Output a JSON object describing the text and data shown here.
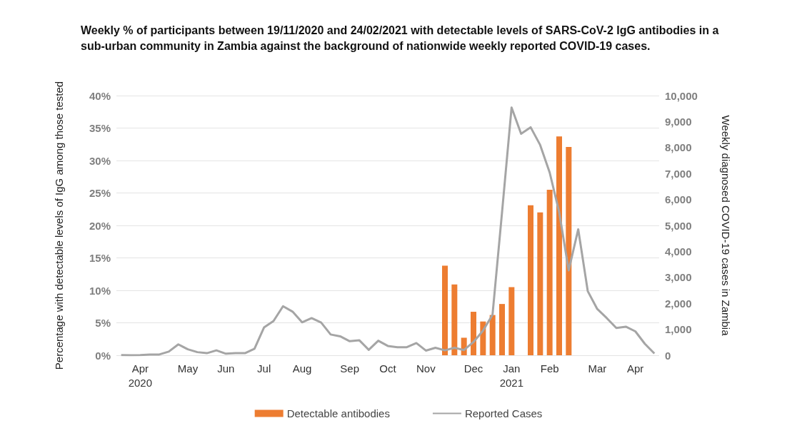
{
  "chart_data": {
    "type": "bar",
    "title": "Weekly % of participants between 19/11/2020 and 24/02/2021 with detectable levels of SARS-CoV-2 IgG antibodies in a sub-urban community in Zambia against the background of nationwide weekly reported COVID-19 cases.",
    "ylabel": "Percentage with detectable levels of IgG among those tested",
    "y2label": "Weekly diagnosed COVID-19 cases in Zambia",
    "categories": [
      null,
      null,
      "Apr\n2020",
      null,
      null,
      null,
      null,
      "May",
      null,
      null,
      null,
      "Jun",
      null,
      null,
      null,
      "Jul",
      null,
      null,
      null,
      "Aug",
      null,
      null,
      null,
      null,
      "Sep",
      null,
      null,
      null,
      "Oct",
      null,
      null,
      null,
      "Nov",
      null,
      null,
      null,
      null,
      "Dec",
      null,
      null,
      null,
      "Jan\n2021",
      null,
      null,
      null,
      "Feb",
      null,
      null,
      null,
      null,
      "Mar",
      null,
      null,
      null,
      "Apr",
      null,
      null
    ],
    "series": [
      {
        "name": "Detectable antibodies",
        "color": "#ed7d31",
        "values": [
          null,
          null,
          null,
          null,
          null,
          null,
          null,
          null,
          null,
          null,
          null,
          null,
          null,
          null,
          null,
          null,
          null,
          null,
          null,
          null,
          null,
          null,
          null,
          null,
          null,
          null,
          null,
          null,
          null,
          null,
          null,
          null,
          null,
          null,
          13.8,
          10.9,
          2.7,
          6.7,
          5.2,
          6.2,
          7.9,
          10.5,
          null,
          23.1,
          22.0,
          25.5,
          33.7,
          32.1,
          null,
          null,
          null,
          null,
          null,
          null,
          null,
          null,
          null
        ]
      },
      {
        "name": "Reported Cases",
        "type": "line",
        "axis": "y2",
        "color": "#a5a5a5",
        "values": [
          10,
          0,
          10,
          30,
          30,
          140,
          420,
          230,
          120,
          80,
          190,
          60,
          80,
          80,
          250,
          1070,
          1320,
          1890,
          1680,
          1270,
          1430,
          1260,
          800,
          730,
          540,
          580,
          210,
          560,
          360,
          310,
          310,
          470,
          180,
          290,
          190,
          290,
          200,
          510,
          950,
          1560,
          5510,
          9540,
          8530,
          8780,
          8100,
          7040,
          5510,
          3270,
          4850,
          2470,
          1780,
          1430,
          1050,
          1100,
          920,
          440,
          70
        ]
      }
    ],
    "ylim": [
      0,
      40
    ],
    "yticks": [
      {
        "value": 0,
        "label": "0%"
      },
      {
        "value": 5,
        "label": "5%"
      },
      {
        "value": 10,
        "label": "10%"
      },
      {
        "value": 15,
        "label": "15%"
      },
      {
        "value": 20,
        "label": "20%"
      },
      {
        "value": 25,
        "label": "25%"
      },
      {
        "value": 30,
        "label": "30%"
      },
      {
        "value": 35,
        "label": "35%"
      },
      {
        "value": 40,
        "label": "40%"
      }
    ],
    "y2lim": [
      0,
      10000
    ],
    "y2ticks": [
      0,
      {
        "value": 1000,
        "label": "1,000"
      },
      {
        "value": 2000,
        "label": "2,000"
      },
      {
        "value": 3000,
        "label": "3,000"
      },
      {
        "value": 4000,
        "label": "4,000"
      },
      {
        "value": 5000,
        "label": "5,000"
      },
      {
        "value": 6000,
        "label": "6,000"
      },
      {
        "value": 7000,
        "label": "7,000"
      },
      {
        "value": 8000,
        "label": "8,000"
      },
      {
        "value": 9000,
        "label": "9,000"
      },
      {
        "value": 10000,
        "label": "10,000"
      }
    ],
    "grid": "y",
    "legend": "bottom",
    "marker": "none"
  }
}
